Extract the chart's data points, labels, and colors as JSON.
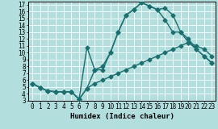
{
  "xlabel": "Humidex (Indice chaleur)",
  "xlim": [
    -0.5,
    23.5
  ],
  "ylim": [
    3,
    17.5
  ],
  "xticks": [
    0,
    1,
    2,
    3,
    4,
    5,
    6,
    7,
    8,
    9,
    10,
    11,
    12,
    13,
    14,
    15,
    16,
    17,
    18,
    19,
    20,
    21,
    22,
    23
  ],
  "yticks": [
    3,
    4,
    5,
    6,
    7,
    8,
    9,
    10,
    11,
    12,
    13,
    14,
    15,
    16,
    17
  ],
  "background_color": "#b2dede",
  "grid_color": "#ffffff",
  "line_color": "#1a7070",
  "line1_x": [
    0,
    1,
    2,
    3,
    4,
    5,
    6,
    7,
    8,
    9,
    10,
    11,
    12,
    13,
    14,
    15,
    16,
    17,
    18,
    19,
    20,
    21,
    22,
    23
  ],
  "line1_y": [
    5.5,
    4.9,
    4.4,
    4.3,
    4.3,
    4.3,
    3.2,
    4.8,
    5.5,
    6.0,
    6.5,
    7.0,
    7.5,
    8.0,
    8.5,
    9.0,
    9.5,
    10.0,
    10.5,
    11.0,
    11.5,
    11.0,
    10.5,
    9.5
  ],
  "line2_x": [
    0,
    1,
    2,
    3,
    4,
    5,
    6,
    7,
    8,
    9,
    10,
    11,
    12,
    13,
    14,
    15,
    16,
    17,
    18,
    19,
    20,
    21,
    22,
    23
  ],
  "line2_y": [
    5.5,
    4.9,
    4.4,
    4.3,
    4.3,
    4.3,
    3.2,
    4.8,
    7.5,
    8.0,
    10.0,
    13.0,
    15.5,
    16.3,
    17.3,
    16.8,
    16.3,
    16.5,
    15.5,
    13.0,
    11.5,
    10.5,
    9.5,
    8.5
  ],
  "line3_x": [
    0,
    1,
    2,
    3,
    4,
    5,
    6,
    7,
    8,
    9,
    10,
    11,
    12,
    13,
    14,
    15,
    16,
    17,
    18,
    19,
    20,
    21,
    22,
    23
  ],
  "line3_y": [
    5.5,
    4.9,
    4.4,
    4.3,
    4.3,
    4.3,
    3.2,
    10.8,
    7.5,
    7.5,
    10.0,
    13.0,
    15.5,
    16.3,
    17.3,
    16.8,
    16.3,
    14.8,
    13.0,
    13.0,
    12.0,
    10.5,
    9.5,
    8.5
  ],
  "markersize": 2.5,
  "linewidth": 1.0,
  "tick_fontsize": 5.5,
  "label_fontsize": 6.5
}
